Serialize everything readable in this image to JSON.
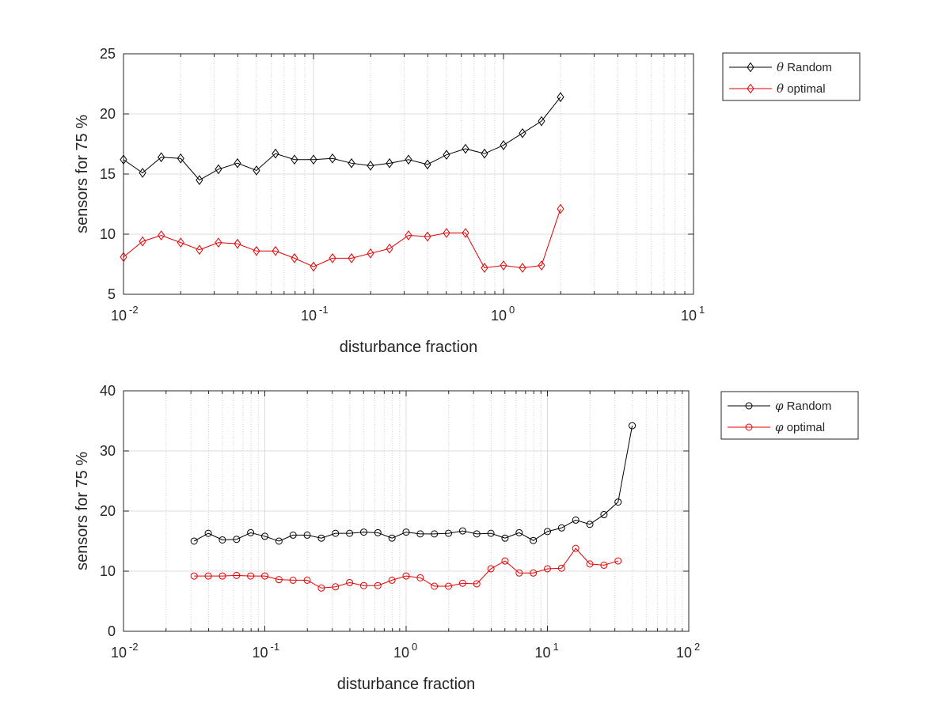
{
  "chart_data": [
    {
      "type": "line",
      "xlabel": "disturbance fraction",
      "ylabel": "sensors for 75 %",
      "xscale": "log",
      "xlim": [
        0.01,
        10
      ],
      "ylim": [
        5,
        25
      ],
      "yticks": [
        5,
        10,
        15,
        20,
        25
      ],
      "xticks": [
        {
          "value": 0.01,
          "base": "10",
          "exp": "-2"
        },
        {
          "value": 0.1,
          "base": "10",
          "exp": "-1"
        },
        {
          "value": 1,
          "base": "10",
          "exp": "0"
        },
        {
          "value": 10,
          "base": "10",
          "exp": "1"
        }
      ],
      "grid": true,
      "legend_position": "outside top-right",
      "x": [
        0.01,
        0.0126,
        0.0158,
        0.02,
        0.0251,
        0.0316,
        0.0398,
        0.0501,
        0.0631,
        0.0794,
        0.1,
        0.1259,
        0.1585,
        0.1995,
        0.2512,
        0.3162,
        0.3981,
        0.5012,
        0.631,
        0.7943,
        1.0,
        1.2589,
        1.5849,
        1.9953
      ],
      "series": [
        {
          "legend_symbol": "θ",
          "legend_text": "Random",
          "color": "#000000",
          "marker": "diamond",
          "values": [
            16.2,
            15.1,
            16.4,
            16.3,
            14.5,
            15.4,
            15.9,
            15.3,
            16.7,
            16.2,
            16.2,
            16.3,
            15.9,
            15.7,
            15.9,
            16.2,
            15.8,
            16.6,
            17.1,
            16.7,
            17.4,
            18.4,
            19.4,
            21.4
          ]
        },
        {
          "legend_symbol": "θ",
          "legend_text": "optimal",
          "color": "#e60000",
          "marker": "diamond",
          "values": [
            8.1,
            9.4,
            9.9,
            9.3,
            8.7,
            9.3,
            9.2,
            8.6,
            8.6,
            8.0,
            7.3,
            8.0,
            8.0,
            8.4,
            8.8,
            9.9,
            9.8,
            10.1,
            10.1,
            7.2,
            7.4,
            7.2,
            7.4,
            12.1
          ]
        }
      ]
    },
    {
      "type": "line",
      "xlabel": "disturbance fraction",
      "ylabel": "sensors for 75 %",
      "xscale": "log",
      "xlim": [
        0.01,
        100
      ],
      "ylim": [
        0,
        40
      ],
      "yticks": [
        0,
        10,
        20,
        30,
        40
      ],
      "xticks": [
        {
          "value": 0.01,
          "base": "10",
          "exp": "-2"
        },
        {
          "value": 0.1,
          "base": "10",
          "exp": "-1"
        },
        {
          "value": 1,
          "base": "10",
          "exp": "0"
        },
        {
          "value": 10,
          "base": "10",
          "exp": "1"
        },
        {
          "value": 100,
          "base": "10",
          "exp": "2"
        }
      ],
      "grid": true,
      "legend_position": "outside top-right",
      "series": [
        {
          "legend_symbol": "φ",
          "legend_text": "Random",
          "color": "#000000",
          "marker": "circle",
          "x": [
            0.0316,
            0.0398,
            0.0501,
            0.0631,
            0.0794,
            0.1,
            0.1259,
            0.1585,
            0.1995,
            0.2512,
            0.3162,
            0.3981,
            0.5012,
            0.631,
            0.7943,
            1.0,
            1.2589,
            1.5849,
            1.9953,
            2.5119,
            3.1623,
            3.9811,
            5.0119,
            6.3096,
            7.9433,
            10.0,
            12.589,
            15.849,
            19.953,
            25.119,
            31.623,
            39.811
          ],
          "values": [
            15.0,
            16.3,
            15.2,
            15.3,
            16.4,
            15.8,
            15.0,
            16.0,
            16.0,
            15.5,
            16.3,
            16.3,
            16.5,
            16.4,
            15.5,
            16.5,
            16.2,
            16.2,
            16.3,
            16.7,
            16.2,
            16.3,
            15.5,
            16.4,
            15.1,
            16.6,
            17.2,
            18.5,
            17.8,
            19.4,
            21.5,
            34.2
          ]
        },
        {
          "legend_symbol": "φ",
          "legend_text": "optimal",
          "color": "#e60000",
          "marker": "circle",
          "x": [
            0.0316,
            0.0398,
            0.0501,
            0.0631,
            0.0794,
            0.1,
            0.1259,
            0.1585,
            0.1995,
            0.2512,
            0.3162,
            0.3981,
            0.5012,
            0.631,
            0.7943,
            1.0,
            1.2589,
            1.5849,
            1.9953,
            2.5119,
            3.1623,
            3.9811,
            5.0119,
            6.3096,
            7.9433,
            10.0,
            12.589,
            15.849,
            19.953,
            25.119,
            31.623
          ],
          "values": [
            9.2,
            9.2,
            9.2,
            9.3,
            9.2,
            9.2,
            8.6,
            8.5,
            8.5,
            7.2,
            7.4,
            8.1,
            7.6,
            7.6,
            8.5,
            9.2,
            8.9,
            7.5,
            7.5,
            8.0,
            7.9,
            10.4,
            11.7,
            9.7,
            9.7,
            10.4,
            10.5,
            13.8,
            11.2,
            11.0,
            11.7
          ]
        }
      ]
    }
  ]
}
